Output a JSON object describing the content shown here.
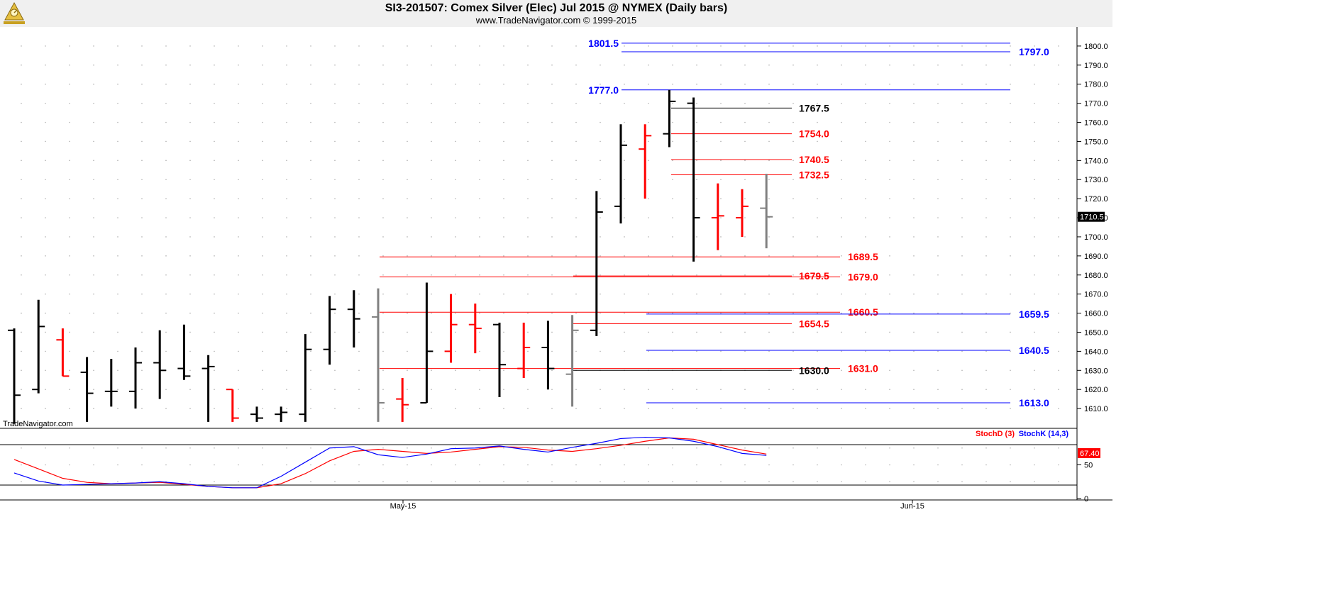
{
  "header": {
    "title": "SI3-201507:  Comex Silver (Elec) Jul 2015 @ NYMEX  (Daily bars)",
    "subtitle": "www.TradeNavigator.com © 1999-2015"
  },
  "watermark": "TradeNavigator.com",
  "colors": {
    "up_bar": "#000000",
    "down_bar": "#ff0000",
    "gray_bar": "#808080",
    "blue_level": "#0000ff",
    "red_level": "#ff0000",
    "black_level": "#000000",
    "stoch_d": "#ff0000",
    "stoch_k": "#0000ff",
    "last_price_box": "#000000",
    "stoch_last_box": "#ff0000"
  },
  "chart_data": [
    {
      "type": "ohlc",
      "title": "SI3-201507:  Comex Silver (Elec) Jul 2015 @ NYMEX  (Daily bars)",
      "y_ticks": [
        "1610.0",
        "1620.0",
        "1630.0",
        "1640.0",
        "1650.0",
        "1660.0",
        "1670.0",
        "1680.0",
        "1690.0",
        "1700.0",
        "1710.0",
        "1720.0",
        "1730.0",
        "1740.0",
        "1750.0",
        "1760.0",
        "1770.0",
        "1780.0",
        "1790.0",
        "1800.0"
      ],
      "ylim": [
        1603,
        1810
      ],
      "x_labels": [
        "May-15",
        "Jun-15"
      ],
      "last_price": "1710.5",
      "bars": [
        {
          "o": 1651,
          "h": 1652,
          "l": 1602,
          "c": 1617,
          "color": "black"
        },
        {
          "o": 1620,
          "h": 1667,
          "l": 1618,
          "c": 1653,
          "color": "black"
        },
        {
          "o": 1646,
          "h": 1652,
          "l": 1627,
          "c": 1627,
          "color": "red"
        },
        {
          "o": 1629,
          "h": 1637,
          "l": 1603,
          "c": 1618,
          "color": "black"
        },
        {
          "o": 1619,
          "h": 1636,
          "l": 1611,
          "c": 1619,
          "color": "black"
        },
        {
          "o": 1619,
          "h": 1642,
          "l": 1610,
          "c": 1634,
          "color": "black"
        },
        {
          "o": 1634,
          "h": 1651,
          "l": 1615,
          "c": 1630,
          "color": "black"
        },
        {
          "o": 1631,
          "h": 1654,
          "l": 1625,
          "c": 1627,
          "color": "black"
        },
        {
          "o": 1631,
          "h": 1638,
          "l": 1603,
          "c": 1632,
          "color": "black"
        },
        {
          "o": 1620,
          "h": 1620,
          "l": 1603,
          "c": 1605,
          "color": "red"
        },
        {
          "o": 1607,
          "h": 1611,
          "l": 1603,
          "c": 1605,
          "color": "black"
        },
        {
          "o": 1607,
          "h": 1611,
          "l": 1603,
          "c": 1608,
          "color": "black"
        },
        {
          "o": 1607,
          "h": 1649,
          "l": 1603,
          "c": 1641,
          "color": "black"
        },
        {
          "o": 1641,
          "h": 1669,
          "l": 1633,
          "c": 1662,
          "color": "black"
        },
        {
          "o": 1662,
          "h": 1672,
          "l": 1642,
          "c": 1657,
          "color": "black"
        },
        {
          "o": 1658,
          "h": 1673,
          "l": 1603,
          "c": 1613,
          "color": "gray"
        },
        {
          "o": 1615,
          "h": 1626,
          "l": 1603,
          "c": 1612,
          "color": "red"
        },
        {
          "o": 1613,
          "h": 1676,
          "l": 1613,
          "c": 1640,
          "color": "black"
        },
        {
          "o": 1640,
          "h": 1670,
          "l": 1634,
          "c": 1654,
          "color": "red"
        },
        {
          "o": 1654,
          "h": 1665,
          "l": 1639,
          "c": 1652,
          "color": "red"
        },
        {
          "o": 1654,
          "h": 1655,
          "l": 1616,
          "c": 1633,
          "color": "black"
        },
        {
          "o": 1631,
          "h": 1655,
          "l": 1626,
          "c": 1642,
          "color": "red"
        },
        {
          "o": 1642,
          "h": 1656,
          "l": 1620,
          "c": 1631,
          "color": "black"
        },
        {
          "o": 1628,
          "h": 1659,
          "l": 1611,
          "c": 1651,
          "color": "gray"
        },
        {
          "o": 1651,
          "h": 1724,
          "l": 1648,
          "c": 1713,
          "color": "black"
        },
        {
          "o": 1716,
          "h": 1759,
          "l": 1707,
          "c": 1748,
          "color": "black"
        },
        {
          "o": 1746,
          "h": 1759,
          "l": 1720,
          "c": 1753,
          "color": "red"
        },
        {
          "o": 1754,
          "h": 1777,
          "l": 1747,
          "c": 1771,
          "color": "black"
        },
        {
          "o": 1770,
          "h": 1773,
          "l": 1687,
          "c": 1710,
          "color": "black"
        },
        {
          "o": 1710,
          "h": 1728,
          "l": 1693,
          "c": 1711,
          "color": "red"
        },
        {
          "o": 1710,
          "h": 1725,
          "l": 1700,
          "c": 1716,
          "color": "red"
        },
        {
          "o": 1715,
          "h": 1733,
          "l": 1694,
          "c": 1710.5,
          "color": "gray"
        }
      ],
      "levels": [
        {
          "value": 1801.5,
          "label": "1801.5",
          "color": "blue",
          "side": "left"
        },
        {
          "value": 1797.0,
          "label": "1797.0",
          "color": "blue",
          "side": "right"
        },
        {
          "value": 1777.0,
          "label": "1777.0",
          "color": "blue",
          "side": "left"
        },
        {
          "value": 1767.5,
          "label": "1767.5",
          "color": "black",
          "side": "mid"
        },
        {
          "value": 1754.0,
          "label": "1754.0",
          "color": "red",
          "side": "mid"
        },
        {
          "value": 1740.5,
          "label": "1740.5",
          "color": "red",
          "side": "mid"
        },
        {
          "value": 1732.5,
          "label": "1732.5",
          "color": "red",
          "side": "mid"
        },
        {
          "value": 1689.5,
          "label": "1689.5",
          "color": "red",
          "side": "far"
        },
        {
          "value": 1679.5,
          "label": "1679.5",
          "color": "red",
          "side": "mid"
        },
        {
          "value": 1679.0,
          "label": "1679.0",
          "color": "red",
          "side": "far"
        },
        {
          "value": 1660.5,
          "label": "1660.5",
          "color": "red",
          "side": "far"
        },
        {
          "value": 1659.5,
          "label": "1659.5",
          "color": "blue",
          "side": "right"
        },
        {
          "value": 1654.5,
          "label": "1654.5",
          "color": "red",
          "side": "mid"
        },
        {
          "value": 1640.5,
          "label": "1640.5",
          "color": "blue",
          "side": "right"
        },
        {
          "value": 1631.0,
          "label": "1631.0",
          "color": "red",
          "side": "far"
        },
        {
          "value": 1630.0,
          "label": "1630.0",
          "color": "black",
          "side": "mid"
        },
        {
          "value": 1613.0,
          "label": "1613.0",
          "color": "blue",
          "side": "right"
        }
      ]
    },
    {
      "type": "line",
      "title": "",
      "legend": [
        "StochD (3)",
        "StochK (14,3)"
      ],
      "y_ticks": [
        "0",
        "50"
      ],
      "ylim": [
        0,
        100
      ],
      "last_value": "67.40",
      "series": [
        {
          "name": "StochD (3)",
          "color": "red",
          "values": [
            58,
            44,
            30,
            24,
            22,
            23,
            24,
            21,
            18,
            16,
            16,
            22,
            37,
            56,
            70,
            73,
            70,
            67,
            69,
            73,
            77,
            76,
            72,
            70,
            74,
            79,
            85,
            90,
            88,
            80,
            72,
            66
          ]
        },
        {
          "name": "StochK (14,3)",
          "color": "blue",
          "values": [
            38,
            26,
            20,
            21,
            22,
            23,
            25,
            22,
            18,
            16,
            16,
            33,
            54,
            75,
            77,
            65,
            61,
            66,
            74,
            75,
            78,
            73,
            69,
            76,
            82,
            89,
            91,
            90,
            85,
            77,
            67,
            64
          ]
        }
      ]
    }
  ]
}
